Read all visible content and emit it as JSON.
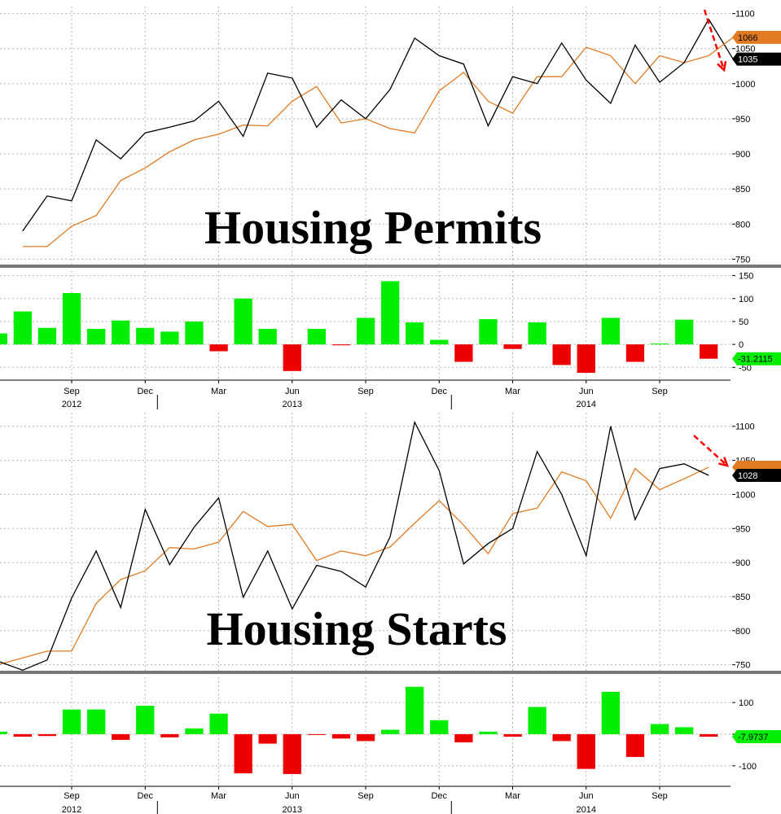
{
  "chart_data": [
    {
      "type": "line",
      "title": "Housing Permits",
      "x": [
        "2012-07",
        "2012-08",
        "2012-09",
        "2012-10",
        "2012-11",
        "2012-12",
        "2013-01",
        "2013-02",
        "2013-03",
        "2013-04",
        "2013-05",
        "2013-06",
        "2013-07",
        "2013-08",
        "2013-09",
        "2013-10",
        "2013-11",
        "2013-12",
        "2014-01",
        "2014-02",
        "2014-03",
        "2014-04",
        "2014-05",
        "2014-06",
        "2014-07",
        "2014-08",
        "2014-09",
        "2014-10",
        "2014-11"
      ],
      "series": [
        {
          "color": "#000000",
          "values": [
            790,
            840,
            833,
            920,
            893,
            930,
            938,
            947,
            975,
            925,
            1015,
            1008,
            938,
            977,
            950,
            992,
            1065,
            1040,
            1028,
            940,
            1010,
            1000,
            1058,
            1005,
            972,
            1055,
            1002,
            1030,
            1092
          ]
        },
        {
          "color": "#e07b22",
          "values": [
            768,
            768,
            797,
            812,
            862,
            880,
            903,
            920,
            928,
            941,
            940,
            975,
            996,
            944,
            950,
            936,
            930,
            990,
            1016,
            975,
            958,
            1010,
            1010,
            1052,
            1040,
            1000,
            1040,
            1030,
            1040
          ]
        }
      ],
      "last_point": {
        "x": "2014-12",
        "black": 1035,
        "orange": 1066
      },
      "value_labels": [
        "1066",
        "1035"
      ],
      "ylim": [
        740,
        1110
      ],
      "yticks": [
        750,
        800,
        850,
        900,
        950,
        1000,
        1050,
        1100
      ]
    },
    {
      "type": "bar",
      "subtitle": "",
      "x": [
        "2012-06",
        "2012-07",
        "2012-08",
        "2012-09",
        "2012-10",
        "2012-11",
        "2012-12",
        "2013-01",
        "2013-02",
        "2013-03",
        "2013-04",
        "2013-05",
        "2013-06",
        "2013-07",
        "2013-08",
        "2013-09",
        "2013-10",
        "2013-11",
        "2013-12",
        "2014-01",
        "2014-02",
        "2014-03",
        "2014-04",
        "2014-05",
        "2014-06",
        "2014-07",
        "2014-08",
        "2014-09",
        "2014-10",
        "2014-11"
      ],
      "values": [
        24,
        72,
        36,
        112,
        34,
        52,
        36,
        28,
        50,
        -15,
        100,
        34,
        -58,
        34,
        -2,
        58,
        138,
        48,
        10,
        -38,
        55,
        -10,
        48,
        -45,
        -62,
        58,
        -38,
        2,
        54,
        -31.2115
      ],
      "last_label": "-31.2115",
      "ylim": [
        -85,
        160
      ],
      "yticks": [
        -50,
        0,
        50,
        100,
        150
      ],
      "ytick_labels": [
        "-50",
        "0",
        "50",
        "100",
        "150"
      ],
      "xticks": [
        "2012-09",
        "2012-12",
        "2013-03",
        "2013-06",
        "2013-09",
        "2013-12",
        "2014-03",
        "2014-06",
        "2014-09"
      ],
      "xtick_labels": [
        "Sep",
        "Dec",
        "Mar",
        "Jun",
        "Sep",
        "Dec",
        "Mar",
        "Jun",
        "Sep"
      ],
      "years": [
        {
          "at": "2012-09",
          "label": "2012"
        },
        {
          "at": "2013-06",
          "label": "2013"
        },
        {
          "at": "2014-06",
          "label": "2014"
        }
      ]
    },
    {
      "type": "line",
      "title": "Housing Starts",
      "x": [
        "2012-06",
        "2012-07",
        "2012-08",
        "2012-09",
        "2012-10",
        "2012-11",
        "2012-12",
        "2013-01",
        "2013-02",
        "2013-03",
        "2013-04",
        "2013-05",
        "2013-06",
        "2013-07",
        "2013-08",
        "2013-09",
        "2013-10",
        "2013-11",
        "2013-12",
        "2014-01",
        "2014-02",
        "2014-03",
        "2014-04",
        "2014-05",
        "2014-06",
        "2014-07",
        "2014-08",
        "2014-09",
        "2014-10",
        "2014-11"
      ],
      "series": [
        {
          "color": "#000000",
          "values": [
            755,
            742,
            757,
            848,
            917,
            834,
            978,
            897,
            952,
            995,
            849,
            917,
            832,
            896,
            887,
            864,
            938,
            1106,
            1035,
            898,
            928,
            950,
            1063,
            1000,
            910,
            1100,
            963,
            1038,
            1045,
            1028
          ]
        },
        {
          "color": "#e07b22",
          "values": [
            750,
            760,
            770,
            770,
            840,
            875,
            888,
            922,
            920,
            930,
            975,
            953,
            956,
            903,
            917,
            910,
            923,
            958,
            991,
            955,
            913,
            972,
            980,
            1033,
            1020,
            965,
            1038,
            1007,
            1023,
            1040
          ]
        }
      ],
      "value_labels": [
        "1028"
      ],
      "ylim": [
        740,
        1120
      ],
      "yticks": [
        750,
        800,
        850,
        900,
        950,
        1000,
        1050,
        1100
      ]
    },
    {
      "type": "bar",
      "subtitle": "",
      "x": [
        "2012-06",
        "2012-07",
        "2012-08",
        "2012-09",
        "2012-10",
        "2012-11",
        "2012-12",
        "2013-01",
        "2013-02",
        "2013-03",
        "2013-04",
        "2013-05",
        "2013-06",
        "2013-07",
        "2013-08",
        "2013-09",
        "2013-10",
        "2013-11",
        "2013-12",
        "2014-01",
        "2014-02",
        "2014-03",
        "2014-04",
        "2014-05",
        "2014-06",
        "2014-07",
        "2014-08",
        "2014-09",
        "2014-10",
        "2014-11"
      ],
      "values": [
        8,
        -8,
        -6,
        78,
        78,
        -18,
        90,
        -10,
        18,
        65,
        -124,
        -30,
        -126,
        -2,
        -14,
        -22,
        14,
        150,
        44,
        -26,
        8,
        -8,
        86,
        -22,
        -110,
        134,
        -72,
        32,
        22,
        -7.9737
      ],
      "last_label": "-7.9737",
      "ylim": [
        -170,
        180
      ],
      "yticks": [
        -100,
        0,
        100
      ],
      "ytick_labels": [
        "-100",
        "0",
        "100"
      ],
      "xticks": [
        "2012-09",
        "2012-12",
        "2013-03",
        "2013-06",
        "2013-09",
        "2013-12",
        "2014-03",
        "2014-06",
        "2014-09"
      ],
      "xtick_labels": [
        "Sep",
        "Dec",
        "Mar",
        "Jun",
        "Sep",
        "Dec",
        "Mar",
        "Jun",
        "Sep"
      ],
      "years": [
        {
          "at": "2012-09",
          "label": "2012"
        },
        {
          "at": "2013-06",
          "label": "2013"
        },
        {
          "at": "2014-06",
          "label": "2014"
        }
      ]
    }
  ],
  "colors": {
    "up_bar": "#00ee00",
    "down_bar": "#ee0000",
    "orange": "#e07b22",
    "arrow": "#ff0000",
    "divider": "#777777",
    "grid": "#b5b5b5"
  }
}
